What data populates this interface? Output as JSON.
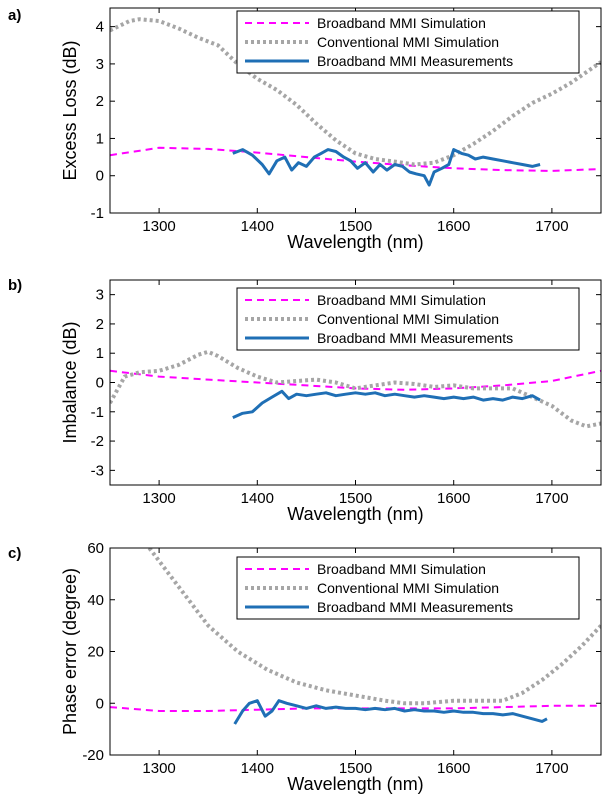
{
  "series_styles": {
    "Broadband MMI Simulation": {
      "color": "#ff00ff",
      "dash": "7,5",
      "width": 2
    },
    "Conventional MMI Simulation": {
      "color": "#a6a6a6",
      "dash": "3,3",
      "width": 4
    },
    "Broadband MMI Measurements": {
      "color": "#1f6fb5",
      "dash": "",
      "width": 3
    }
  },
  "chart_data": [
    {
      "type": "line",
      "panel_label": "a)",
      "xlabel": "Wavelength (nm)",
      "ylabel": "Excess Loss (dB)",
      "xlim": [
        1250,
        1750
      ],
      "ylim": [
        -1,
        4.5
      ],
      "xticks": [
        1300,
        1400,
        1500,
        1600,
        1700
      ],
      "yticks": [
        -1,
        0,
        1,
        2,
        3,
        4
      ],
      "legend": "top-right",
      "series": [
        {
          "name": "Broadband MMI Simulation",
          "x": [
            1250,
            1300,
            1350,
            1400,
            1450,
            1500,
            1550,
            1600,
            1650,
            1700,
            1750
          ],
          "y": [
            0.55,
            0.75,
            0.72,
            0.62,
            0.5,
            0.38,
            0.28,
            0.2,
            0.15,
            0.13,
            0.18
          ]
        },
        {
          "name": "Conventional MMI Simulation",
          "x": [
            1250,
            1270,
            1280,
            1300,
            1320,
            1340,
            1360,
            1380,
            1400,
            1420,
            1440,
            1460,
            1480,
            1500,
            1520,
            1540,
            1560,
            1580,
            1600,
            1620,
            1640,
            1660,
            1680,
            1700,
            1720,
            1750
          ],
          "y": [
            3.9,
            4.15,
            4.2,
            4.15,
            3.95,
            3.7,
            3.5,
            3.0,
            2.6,
            2.3,
            1.9,
            1.4,
            0.95,
            0.6,
            0.45,
            0.38,
            0.3,
            0.35,
            0.55,
            0.85,
            1.2,
            1.6,
            1.95,
            2.2,
            2.5,
            3.05
          ]
        },
        {
          "name": "Broadband MMI Measurements",
          "x": [
            1375,
            1385,
            1395,
            1405,
            1412,
            1420,
            1428,
            1435,
            1442,
            1450,
            1458,
            1465,
            1472,
            1480,
            1488,
            1495,
            1502,
            1510,
            1518,
            1525,
            1532,
            1540,
            1548,
            1555,
            1562,
            1570,
            1575,
            1580,
            1588,
            1595,
            1600,
            1608,
            1615,
            1622,
            1630,
            1640,
            1650,
            1660,
            1670,
            1680,
            1688
          ],
          "y": [
            0.6,
            0.7,
            0.55,
            0.3,
            0.05,
            0.4,
            0.5,
            0.15,
            0.35,
            0.25,
            0.5,
            0.6,
            0.7,
            0.65,
            0.5,
            0.4,
            0.2,
            0.35,
            0.1,
            0.3,
            0.15,
            0.3,
            0.25,
            0.1,
            0.05,
            0.0,
            -0.25,
            0.1,
            0.2,
            0.3,
            0.7,
            0.6,
            0.55,
            0.45,
            0.5,
            0.45,
            0.4,
            0.35,
            0.3,
            0.25,
            0.3
          ]
        }
      ]
    },
    {
      "type": "line",
      "panel_label": "b)",
      "xlabel": "Wavelength (nm)",
      "ylabel": "Imbalance (dB)",
      "xlim": [
        1250,
        1750
      ],
      "ylim": [
        -3.5,
        3.5
      ],
      "xticks": [
        1300,
        1400,
        1500,
        1600,
        1700
      ],
      "yticks": [
        -3,
        -2,
        -1,
        0,
        1,
        2,
        3
      ],
      "legend": "top-right",
      "series": [
        {
          "name": "Broadband MMI Simulation",
          "x": [
            1250,
            1300,
            1350,
            1400,
            1450,
            1500,
            1550,
            1600,
            1650,
            1700,
            1750
          ],
          "y": [
            0.4,
            0.2,
            0.1,
            0.0,
            -0.1,
            -0.2,
            -0.25,
            -0.2,
            -0.1,
            0.05,
            0.4
          ]
        },
        {
          "name": "Conventional MMI Simulation",
          "x": [
            1250,
            1265,
            1280,
            1300,
            1320,
            1340,
            1350,
            1360,
            1380,
            1400,
            1420,
            1440,
            1460,
            1480,
            1500,
            1520,
            1540,
            1560,
            1580,
            1600,
            1620,
            1640,
            1660,
            1680,
            1700,
            1720,
            1735,
            1750
          ],
          "y": [
            -0.7,
            0.2,
            0.35,
            0.4,
            0.6,
            0.95,
            1.05,
            0.9,
            0.5,
            0.2,
            0.0,
            0.05,
            0.1,
            0.0,
            -0.2,
            -0.1,
            0.0,
            -0.05,
            -0.15,
            -0.1,
            -0.2,
            -0.2,
            -0.2,
            -0.5,
            -0.8,
            -1.3,
            -1.5,
            -1.4
          ]
        },
        {
          "name": "Broadband MMI Measurements",
          "x": [
            1375,
            1385,
            1395,
            1405,
            1415,
            1425,
            1432,
            1440,
            1450,
            1460,
            1470,
            1480,
            1490,
            1500,
            1510,
            1520,
            1530,
            1540,
            1550,
            1560,
            1570,
            1580,
            1590,
            1600,
            1610,
            1620,
            1630,
            1640,
            1650,
            1660,
            1670,
            1680,
            1688
          ],
          "y": [
            -1.2,
            -1.05,
            -1.0,
            -0.7,
            -0.5,
            -0.3,
            -0.55,
            -0.4,
            -0.45,
            -0.4,
            -0.35,
            -0.45,
            -0.4,
            -0.35,
            -0.4,
            -0.35,
            -0.45,
            -0.4,
            -0.45,
            -0.5,
            -0.45,
            -0.5,
            -0.55,
            -0.5,
            -0.55,
            -0.5,
            -0.6,
            -0.55,
            -0.6,
            -0.5,
            -0.55,
            -0.45,
            -0.6
          ]
        }
      ]
    },
    {
      "type": "line",
      "panel_label": "c)",
      "xlabel": "Wavelength (nm)",
      "ylabel": "Phase error (degree)",
      "xlim": [
        1250,
        1750
      ],
      "ylim": [
        -20,
        60
      ],
      "xticks": [
        1300,
        1400,
        1500,
        1600,
        1700
      ],
      "yticks": [
        -20,
        0,
        20,
        40,
        60
      ],
      "legend": "top-right",
      "series": [
        {
          "name": "Broadband MMI Simulation",
          "x": [
            1250,
            1300,
            1350,
            1400,
            1450,
            1500,
            1550,
            1600,
            1650,
            1700,
            1750
          ],
          "y": [
            -1.5,
            -3.0,
            -3.0,
            -2.5,
            -2.0,
            -2.0,
            -2.0,
            -2.0,
            -1.5,
            -1.0,
            -1.0
          ]
        },
        {
          "name": "Conventional MMI Simulation",
          "x": [
            1290,
            1310,
            1330,
            1350,
            1380,
            1410,
            1440,
            1470,
            1500,
            1530,
            1550,
            1570,
            1600,
            1630,
            1650,
            1670,
            1690,
            1710,
            1730,
            1750
          ],
          "y": [
            60,
            50,
            40,
            30,
            20,
            13,
            8,
            5,
            3,
            1,
            0,
            0,
            1,
            1,
            1,
            4,
            9,
            15,
            22,
            30
          ]
        },
        {
          "name": "Broadband MMI Measurements",
          "x": [
            1377,
            1385,
            1392,
            1400,
            1408,
            1415,
            1422,
            1430,
            1440,
            1450,
            1460,
            1470,
            1480,
            1490,
            1500,
            1510,
            1520,
            1530,
            1540,
            1550,
            1560,
            1570,
            1580,
            1590,
            1600,
            1610,
            1620,
            1630,
            1640,
            1650,
            1660,
            1670,
            1680,
            1690,
            1695
          ],
          "y": [
            -8.0,
            -3.0,
            0.0,
            1.0,
            -5.0,
            -3.0,
            1.0,
            0.0,
            -1.0,
            -2.0,
            -1.0,
            -2.0,
            -1.5,
            -2.0,
            -2.0,
            -2.5,
            -2.0,
            -2.5,
            -2.0,
            -3.0,
            -2.5,
            -3.0,
            -3.0,
            -3.5,
            -3.0,
            -3.5,
            -3.5,
            -4.0,
            -4.0,
            -4.5,
            -4.0,
            -5.0,
            -6.0,
            -7.0,
            -6.0
          ]
        }
      ]
    }
  ]
}
